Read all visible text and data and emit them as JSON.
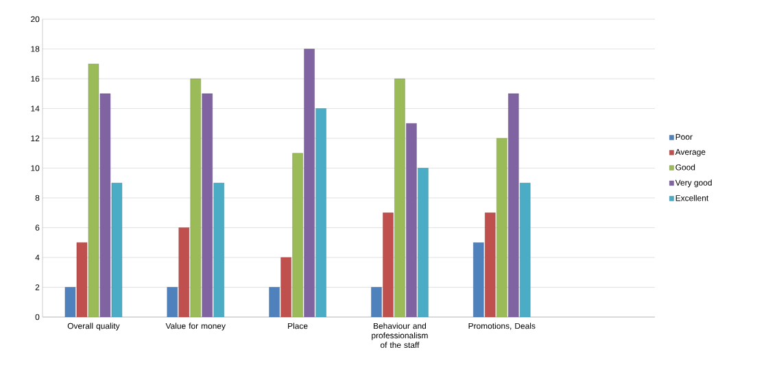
{
  "chart_data": {
    "type": "bar",
    "categories": [
      "Overall quality",
      "Value for money",
      "Place",
      "Behaviour and professionalism of the staff",
      "Promotions, Deals",
      null
    ],
    "series": [
      {
        "name": "Poor",
        "color": "#4f81bd",
        "values": [
          2,
          2,
          2,
          2,
          5,
          null
        ]
      },
      {
        "name": "Average",
        "color": "#c0504d",
        "values": [
          5,
          6,
          4,
          7,
          7,
          null
        ]
      },
      {
        "name": "Good",
        "color": "#9bbb59",
        "values": [
          17,
          16,
          11,
          16,
          12,
          null
        ]
      },
      {
        "name": "Very good",
        "color": "#8064a2",
        "values": [
          15,
          15,
          18,
          13,
          15,
          null
        ]
      },
      {
        "name": "Excellent",
        "color": "#4bacc6",
        "values": [
          9,
          9,
          14,
          10,
          9,
          null
        ]
      }
    ],
    "ylim": [
      0,
      20
    ],
    "yticks": [
      0,
      2,
      4,
      6,
      8,
      10,
      12,
      14,
      16,
      18,
      20
    ],
    "grid": "y",
    "legend": "right"
  }
}
